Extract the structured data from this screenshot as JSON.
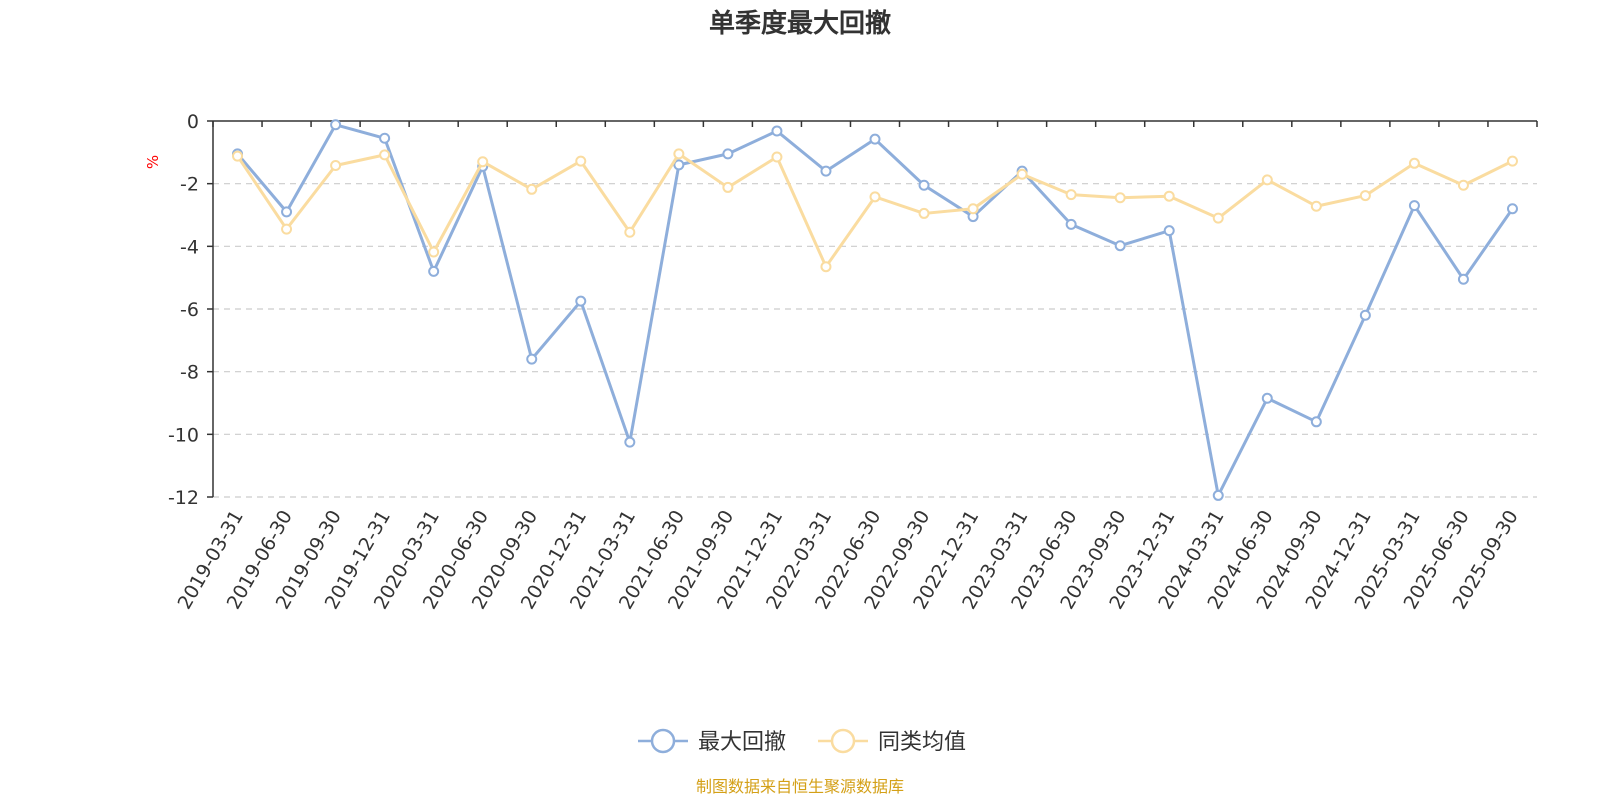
{
  "chart_data": {
    "type": "line",
    "title": "单季度最大回撤",
    "ylabel": "%",
    "ylim": [
      -12,
      0
    ],
    "yticks": [
      0,
      -2,
      -4,
      -6,
      -8,
      -10,
      -12
    ],
    "grid": true,
    "legend_position": "bottom-center",
    "categories": [
      "2019-03-31",
      "2019-06-30",
      "2019-09-30",
      "2019-12-31",
      "2020-03-31",
      "2020-06-30",
      "2020-09-30",
      "2020-12-31",
      "2021-03-31",
      "2021-06-30",
      "2021-09-30",
      "2021-12-31",
      "2022-03-31",
      "2022-06-30",
      "2022-09-30",
      "2022-12-31",
      "2023-03-31",
      "2023-06-30",
      "2023-09-30",
      "2023-12-31",
      "2024-03-31",
      "2024-06-30",
      "2024-09-30",
      "2024-12-31",
      "2025-03-31",
      "2025-06-30",
      "2025-09-30"
    ],
    "series": [
      {
        "name": "最大回撤",
        "color": "#8eaedb",
        "values": [
          -1.05,
          -2.9,
          -0.12,
          -0.55,
          -4.8,
          -1.45,
          -7.6,
          -5.75,
          -10.25,
          -1.4,
          -1.05,
          -0.32,
          -1.6,
          -0.58,
          -2.05,
          -3.05,
          -1.6,
          -3.3,
          -3.98,
          -3.5,
          -11.95,
          -8.85,
          -9.6,
          -6.2,
          -2.7,
          -5.05,
          -2.8
        ]
      },
      {
        "name": "同类均值",
        "color": "#fadca0",
        "values": [
          -1.12,
          -3.45,
          -1.42,
          -1.08,
          -4.18,
          -1.3,
          -2.18,
          -1.28,
          -3.55,
          -1.05,
          -2.12,
          -1.15,
          -4.65,
          -2.42,
          -2.95,
          -2.8,
          -1.7,
          -2.35,
          -2.45,
          -2.4,
          -3.1,
          -1.88,
          -2.72,
          -2.38,
          -1.35,
          -2.05,
          -1.28
        ]
      }
    ]
  },
  "source_text": "制图数据来自恒生聚源数据库",
  "colors": {
    "axis": "#333333",
    "grid": "#cccccc",
    "unit_label": "#ff0000",
    "source_text": "#d4a017"
  }
}
